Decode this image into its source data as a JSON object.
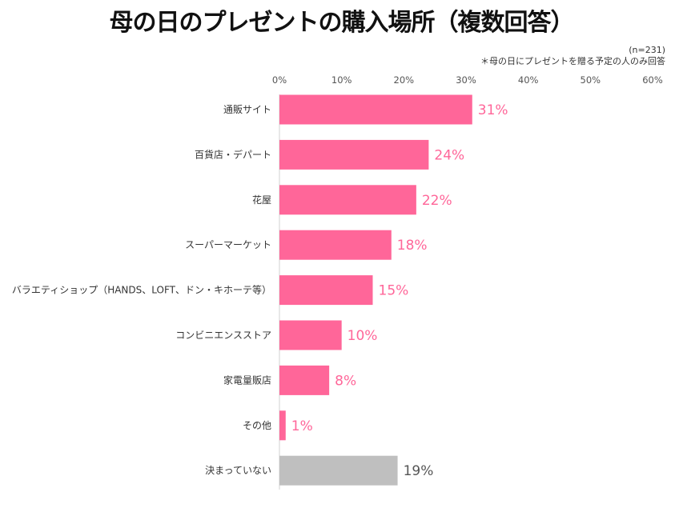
{
  "chart_data": {
    "type": "bar",
    "orientation": "horizontal",
    "title": "母の日のプレゼントの購入場所（複数回答）",
    "notes": [
      "(n=231)",
      "＊母の日にプレゼントを贈る予定の人のみ回答"
    ],
    "categories": [
      "通販サイト",
      "百貨店・デパート",
      "花屋",
      "スーパーマーケット",
      "バラエティショップ（HANDS、LOFT、ドン・キホーテ等）",
      "コンビニエンスストア",
      "家電量販店",
      "その他",
      "決まっていない"
    ],
    "values": [
      31,
      24,
      22,
      18,
      15,
      10,
      8,
      1,
      19
    ],
    "data_labels": [
      "31%",
      "24%",
      "22%",
      "18%",
      "15%",
      "10%",
      "8%",
      "1%",
      "19%"
    ],
    "xlim": [
      0,
      60
    ],
    "x_ticks": [
      "0%",
      "10%",
      "20%",
      "30%",
      "40%",
      "50%",
      "60%"
    ],
    "x_axis_position": "top",
    "grid": false,
    "colors": {
      "bar": "#FF6699",
      "bar_undecided": "#BFBFBF",
      "label": "#FF6699",
      "label_undecided": "#555555"
    }
  }
}
